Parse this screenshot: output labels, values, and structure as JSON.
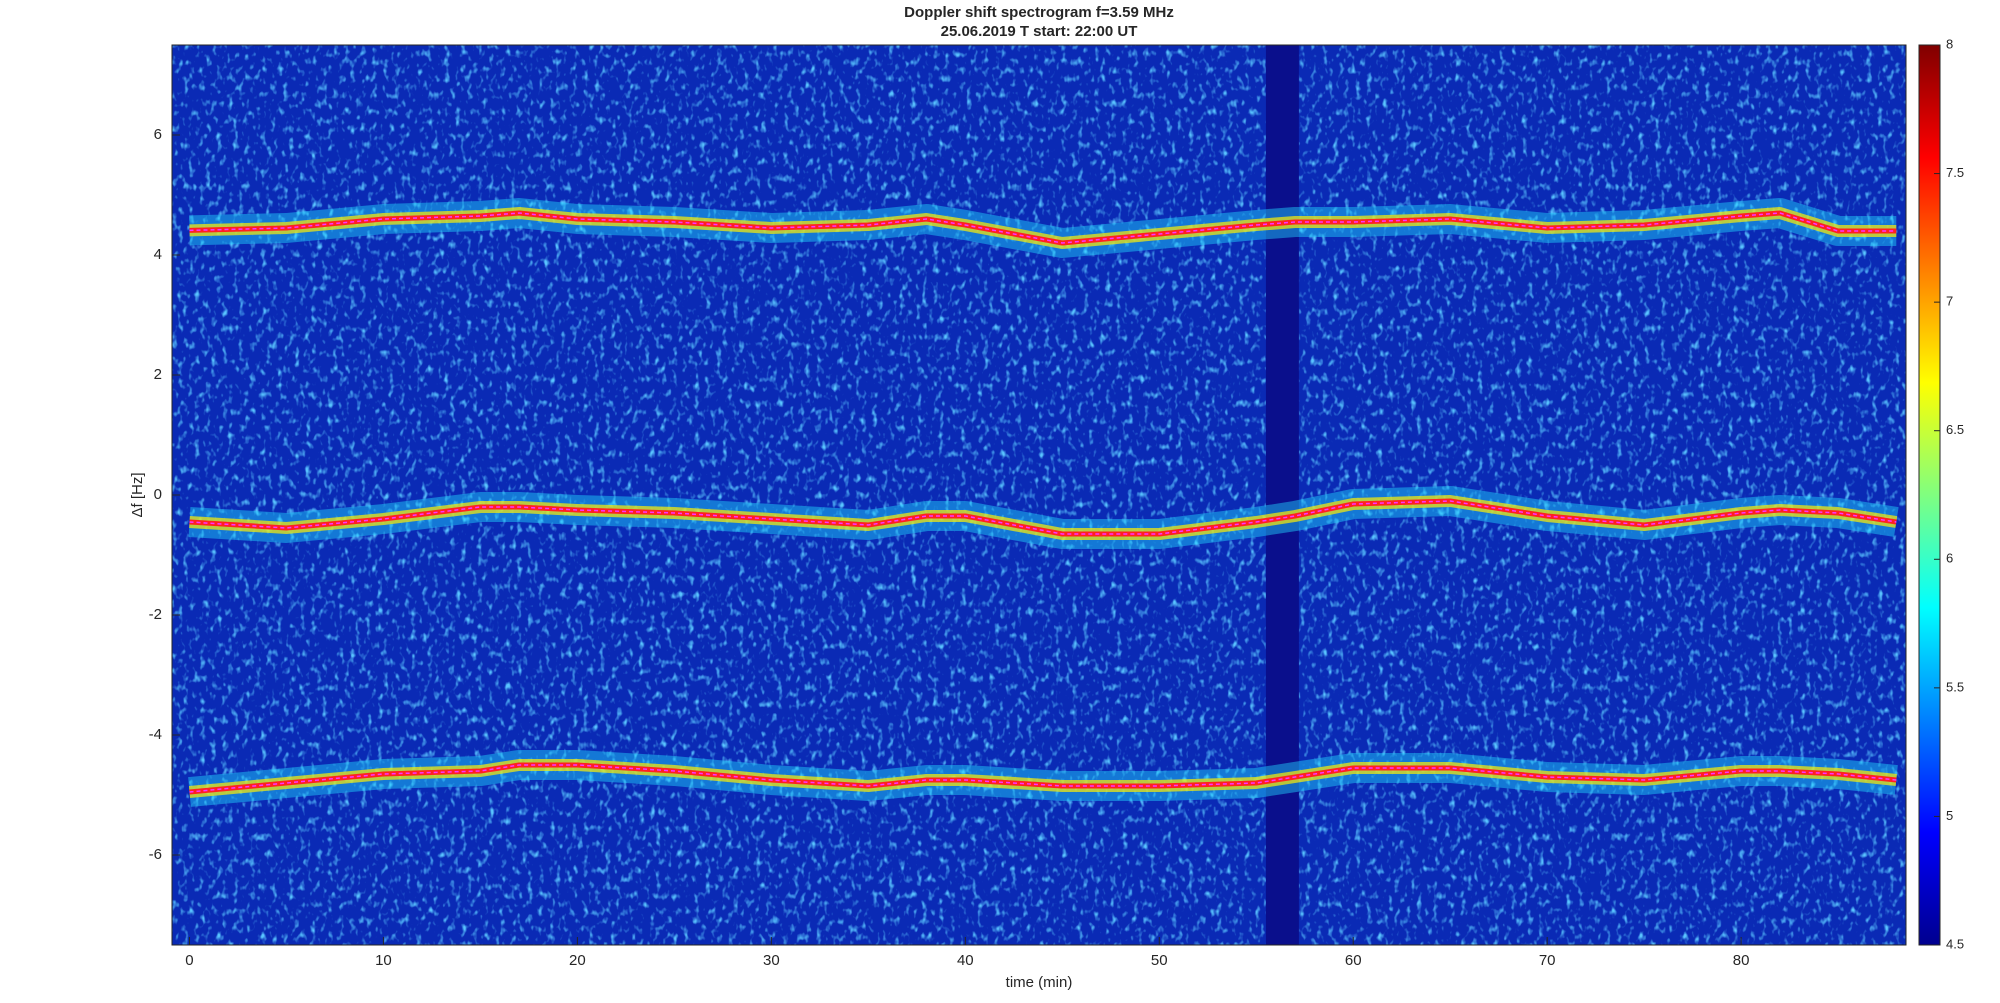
{
  "chart_data": {
    "type": "spectrogram",
    "title": "Doppler shift spectrogram f=3.59 MHz",
    "subtitle": "25.06.2019    T start: 22:00 UT",
    "xlabel": "time (min)",
    "ylabel": "Δf [Hz]",
    "xlim": [
      -0.9,
      88.5
    ],
    "xticks": [
      0,
      10,
      20,
      30,
      40,
      50,
      60,
      70,
      80
    ],
    "ylim": [
      -7.5,
      7.5
    ],
    "yticks": [
      -6,
      -4,
      -2,
      0,
      2,
      4,
      6
    ],
    "background": "#0a2ab5",
    "gap": [
      55.5,
      57.2
    ],
    "gap_color": "#0a0f8c",
    "track_color": "#ff33ff",
    "x": [
      0,
      5,
      10,
      15,
      17,
      20,
      25,
      30,
      35,
      38,
      40,
      45,
      50,
      55,
      57,
      60,
      65,
      70,
      75,
      80,
      82,
      85,
      88
    ],
    "series": [
      {
        "color": "#ff2020",
        "values": [
          4.41,
          4.45,
          4.6,
          4.65,
          4.7,
          4.6,
          4.55,
          4.45,
          4.5,
          4.6,
          4.5,
          4.2,
          4.35,
          4.5,
          4.55,
          4.55,
          4.6,
          4.45,
          4.5,
          4.65,
          4.7,
          4.4,
          4.4
        ]
      },
      {
        "color": "#ff2020",
        "values": [
          -0.45,
          -0.55,
          -0.4,
          -0.2,
          -0.2,
          -0.25,
          -0.3,
          -0.4,
          -0.5,
          -0.35,
          -0.35,
          -0.65,
          -0.65,
          -0.45,
          -0.35,
          -0.15,
          -0.1,
          -0.35,
          -0.5,
          -0.3,
          -0.25,
          -0.3,
          -0.45
        ]
      },
      {
        "color": "#ff2020",
        "values": [
          -4.95,
          -4.8,
          -4.65,
          -4.6,
          -4.5,
          -4.5,
          -4.6,
          -4.75,
          -4.85,
          -4.75,
          -4.75,
          -4.85,
          -4.85,
          -4.8,
          -4.7,
          -4.55,
          -4.55,
          -4.7,
          -4.75,
          -4.6,
          -4.6,
          -4.65,
          -4.75
        ]
      }
    ],
    "colorbar": {
      "colormap": "jet",
      "clim": [
        4.5,
        8
      ],
      "ticks": [
        4.5,
        5,
        5.5,
        6,
        6.5,
        7,
        7.5,
        8
      ]
    }
  }
}
